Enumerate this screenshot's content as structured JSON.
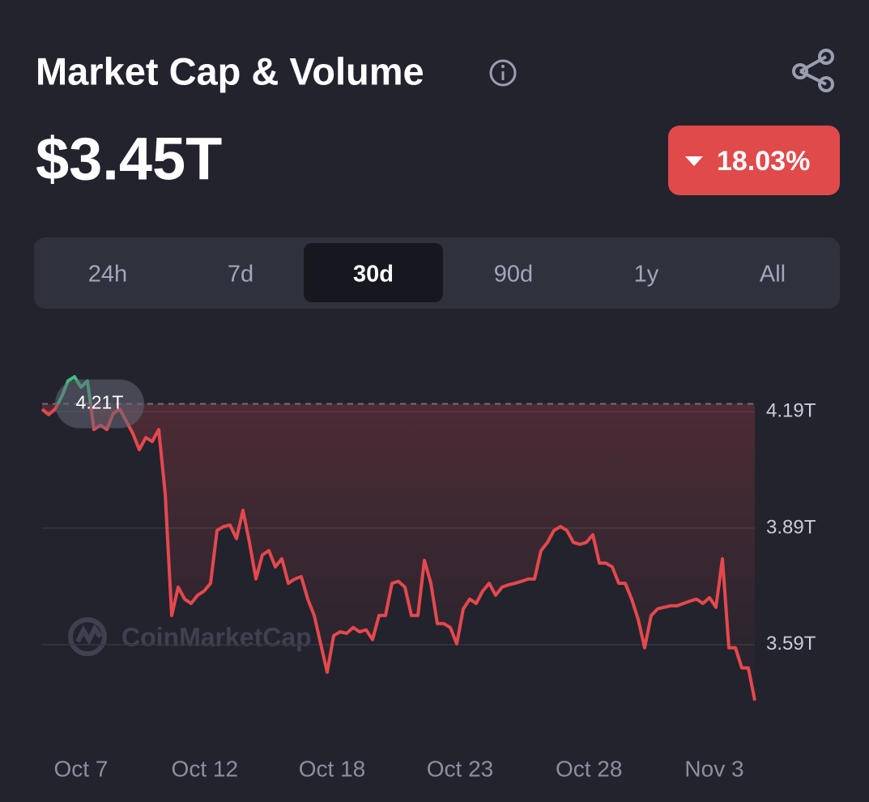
{
  "header": {
    "title": "Market Cap & Volume",
    "value": "$3.45T",
    "change": "18.03%"
  },
  "tabs": [
    "24h",
    "7d",
    "30d",
    "90d",
    "1y",
    "All"
  ],
  "active_tab": 2,
  "watermark": "CoinMarketCap",
  "chart_data": {
    "type": "line",
    "values": [
      4.196,
      4.182,
      4.196,
      4.228,
      4.269,
      4.28,
      4.253,
      4.269,
      4.144,
      4.155,
      4.144,
      4.186,
      4.196,
      4.165,
      4.134,
      4.092,
      4.123,
      4.113,
      4.144,
      3.978,
      3.665,
      3.738,
      3.707,
      3.696,
      3.717,
      3.728,
      3.748,
      3.884,
      3.894,
      3.898,
      3.863,
      3.936,
      3.853,
      3.759,
      3.821,
      3.832,
      3.79,
      3.811,
      3.748,
      3.759,
      3.765,
      3.707,
      3.665,
      3.592,
      3.519,
      3.613,
      3.623,
      3.619,
      3.634,
      3.623,
      3.628,
      3.603,
      3.665,
      3.665,
      3.748,
      3.753,
      3.738,
      3.665,
      3.665,
      3.807,
      3.748,
      3.644,
      3.644,
      3.634,
      3.592,
      3.682,
      3.707,
      3.696,
      3.728,
      3.748,
      3.717,
      3.738,
      3.744,
      3.748,
      3.753,
      3.759,
      3.759,
      3.832,
      3.853,
      3.884,
      3.894,
      3.884,
      3.853,
      3.848,
      3.853,
      3.873,
      3.8,
      3.8,
      3.79,
      3.748,
      3.748,
      3.707,
      3.655,
      3.582,
      3.665,
      3.682,
      3.686,
      3.69,
      3.69,
      3.696,
      3.702,
      3.707,
      3.696,
      3.711,
      3.686,
      3.811,
      3.582,
      3.582,
      3.53,
      3.53,
      3.446
    ],
    "xlim": [
      0,
      110
    ],
    "xticks": [
      {
        "value": 6,
        "label": "Oct 7"
      },
      {
        "value": 25.1,
        "label": "Oct 12"
      },
      {
        "value": 44.75,
        "label": "Oct 18"
      },
      {
        "value": 64.5,
        "label": "Oct 23"
      },
      {
        "value": 84.4,
        "label": "Oct 28"
      },
      {
        "value": 103.75,
        "label": "Nov 3"
      }
    ],
    "ylim": [
      3.41,
      4.33
    ],
    "yticks": [
      {
        "value": 4.19,
        "label": "4.19T"
      },
      {
        "value": 3.89,
        "label": "3.89T"
      },
      {
        "value": 3.59,
        "label": "3.59T"
      }
    ],
    "baseline": {
      "value": 4.21,
      "label": "4.21T"
    },
    "up_color": "#3fbf7f",
    "down_color": "#e5484d",
    "grid": true
  }
}
